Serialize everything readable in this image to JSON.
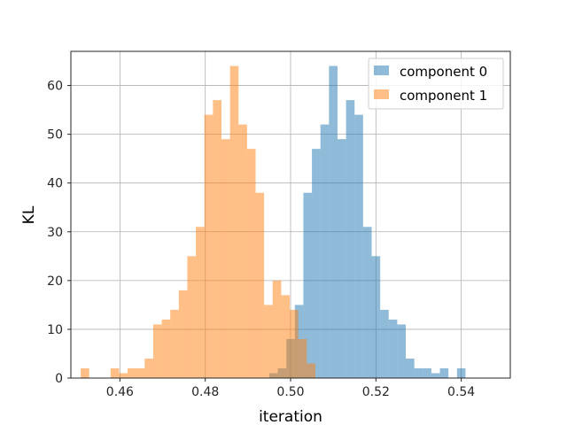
{
  "chart_data": {
    "type": "histogram",
    "xlabel": "iteration",
    "ylabel": "KL",
    "xlim": [
      0.4485,
      0.5515
    ],
    "ylim": [
      0,
      67
    ],
    "x_ticks": [
      "0.46",
      "0.48",
      "0.50",
      "0.52",
      "0.54"
    ],
    "y_ticks": [
      "0",
      "10",
      "20",
      "30",
      "40",
      "50",
      "60"
    ],
    "grid": true,
    "legend_position": "top-right",
    "series": [
      {
        "name": "component 0",
        "color": "#1f77b4",
        "bins": [
          {
            "x0": 0.495,
            "x1": 0.497,
            "count": 1
          },
          {
            "x0": 0.497,
            "x1": 0.499,
            "count": 2
          },
          {
            "x0": 0.499,
            "x1": 0.501,
            "count": 8
          },
          {
            "x0": 0.501,
            "x1": 0.503,
            "count": 15
          },
          {
            "x0": 0.503,
            "x1": 0.505,
            "count": 38
          },
          {
            "x0": 0.505,
            "x1": 0.507,
            "count": 47
          },
          {
            "x0": 0.507,
            "x1": 0.509,
            "count": 52
          },
          {
            "x0": 0.509,
            "x1": 0.511,
            "count": 64
          },
          {
            "x0": 0.511,
            "x1": 0.513,
            "count": 49
          },
          {
            "x0": 0.513,
            "x1": 0.515,
            "count": 57
          },
          {
            "x0": 0.515,
            "x1": 0.517,
            "count": 54
          },
          {
            "x0": 0.517,
            "x1": 0.519,
            "count": 31
          },
          {
            "x0": 0.519,
            "x1": 0.521,
            "count": 25
          },
          {
            "x0": 0.521,
            "x1": 0.523,
            "count": 14
          },
          {
            "x0": 0.523,
            "x1": 0.525,
            "count": 12
          },
          {
            "x0": 0.525,
            "x1": 0.527,
            "count": 11
          },
          {
            "x0": 0.527,
            "x1": 0.529,
            "count": 4
          },
          {
            "x0": 0.529,
            "x1": 0.531,
            "count": 2
          },
          {
            "x0": 0.531,
            "x1": 0.533,
            "count": 2
          },
          {
            "x0": 0.533,
            "x1": 0.535,
            "count": 1
          },
          {
            "x0": 0.535,
            "x1": 0.537,
            "count": 2
          },
          {
            "x0": 0.539,
            "x1": 0.541,
            "count": 2
          }
        ]
      },
      {
        "name": "component 1",
        "color": "#ff7f0e",
        "bins": [
          {
            "x0": 0.4508,
            "x1": 0.4528,
            "count": 2
          },
          {
            "x0": 0.4578,
            "x1": 0.4598,
            "count": 2
          },
          {
            "x0": 0.4598,
            "x1": 0.4618,
            "count": 1
          },
          {
            "x0": 0.4618,
            "x1": 0.4638,
            "count": 2
          },
          {
            "x0": 0.4638,
            "x1": 0.4658,
            "count": 2
          },
          {
            "x0": 0.4658,
            "x1": 0.4678,
            "count": 4
          },
          {
            "x0": 0.4678,
            "x1": 0.4698,
            "count": 11
          },
          {
            "x0": 0.4698,
            "x1": 0.4718,
            "count": 12
          },
          {
            "x0": 0.4718,
            "x1": 0.4738,
            "count": 14
          },
          {
            "x0": 0.4738,
            "x1": 0.4758,
            "count": 18
          },
          {
            "x0": 0.4758,
            "x1": 0.4778,
            "count": 25
          },
          {
            "x0": 0.4778,
            "x1": 0.4798,
            "count": 31
          },
          {
            "x0": 0.4798,
            "x1": 0.4818,
            "count": 54
          },
          {
            "x0": 0.4818,
            "x1": 0.4838,
            "count": 57
          },
          {
            "x0": 0.4838,
            "x1": 0.4858,
            "count": 49
          },
          {
            "x0": 0.4858,
            "x1": 0.4878,
            "count": 64
          },
          {
            "x0": 0.4878,
            "x1": 0.4898,
            "count": 52
          },
          {
            "x0": 0.4898,
            "x1": 0.4918,
            "count": 47
          },
          {
            "x0": 0.4918,
            "x1": 0.4938,
            "count": 38
          },
          {
            "x0": 0.4938,
            "x1": 0.4958,
            "count": 15
          },
          {
            "x0": 0.4958,
            "x1": 0.4978,
            "count": 20
          },
          {
            "x0": 0.4978,
            "x1": 0.4998,
            "count": 17
          },
          {
            "x0": 0.4998,
            "x1": 0.5018,
            "count": 14
          },
          {
            "x0": 0.5018,
            "x1": 0.5038,
            "count": 8
          },
          {
            "x0": 0.5038,
            "x1": 0.5058,
            "count": 3
          }
        ]
      }
    ]
  }
}
